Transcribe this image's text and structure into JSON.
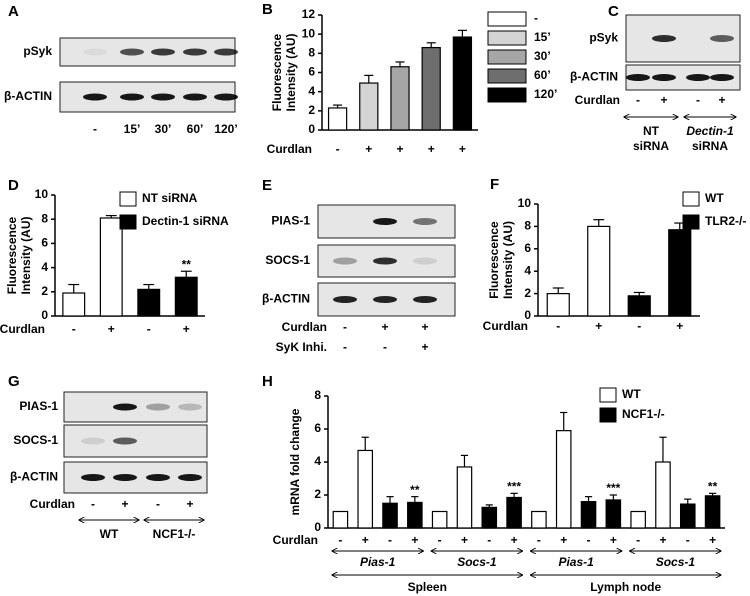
{
  "chart_data": [
    {
      "type": "bar",
      "panel": "B",
      "ylabel": [
        "Fluorescence",
        "Intensity (AU)"
      ],
      "xlabel": "Curdlan",
      "categories": [
        "-",
        "+",
        "+",
        "+",
        "+"
      ],
      "ylim": [
        0,
        12
      ],
      "yticks": [
        0,
        2,
        4,
        6,
        8,
        10,
        12
      ],
      "series": [
        {
          "name": "-",
          "color": "#ffffff",
          "values": [
            2.3,
            null,
            null,
            null,
            null
          ],
          "errors": [
            0.3,
            null,
            null,
            null,
            null
          ]
        },
        {
          "name": "15’",
          "color": "#d4d4d4",
          "values": [
            null,
            4.9,
            null,
            null,
            null
          ],
          "errors": [
            null,
            0.8,
            null,
            null,
            null
          ]
        },
        {
          "name": "30’",
          "color": "#a6a6a6",
          "values": [
            null,
            null,
            6.6,
            null,
            null
          ],
          "errors": [
            null,
            null,
            0.5,
            null,
            null
          ]
        },
        {
          "name": "60’",
          "color": "#6e6e6e",
          "values": [
            null,
            null,
            null,
            8.6,
            null
          ],
          "errors": [
            null,
            null,
            null,
            0.5,
            null
          ]
        },
        {
          "name": "120’",
          "color": "#000000",
          "values": [
            null,
            null,
            null,
            null,
            9.7
          ],
          "errors": [
            null,
            null,
            null,
            null,
            0.7
          ]
        }
      ]
    },
    {
      "type": "bar",
      "panel": "D",
      "ylabel": [
        "Fluorescence",
        "Intensity (AU)"
      ],
      "xlabel": "Curdlan",
      "categories": [
        "-",
        "+",
        "-",
        "+"
      ],
      "ylim": [
        0,
        10
      ],
      "yticks": [
        0,
        2,
        4,
        6,
        8,
        10
      ],
      "significance": [
        null,
        null,
        null,
        "**"
      ],
      "series": [
        {
          "name": "NT siRNA",
          "color": "#ffffff",
          "values": [
            1.9,
            8.1,
            null,
            null
          ],
          "errors": [
            0.7,
            0.2,
            null,
            null
          ]
        },
        {
          "name": "Dectin-1 siRNA",
          "color": "#000000",
          "values": [
            null,
            null,
            2.2,
            3.2
          ],
          "errors": [
            null,
            null,
            0.4,
            0.5
          ]
        }
      ]
    },
    {
      "type": "bar",
      "panel": "F",
      "ylabel": [
        "Fluorescence",
        "Intensity (AU)"
      ],
      "xlabel": "Curdlan",
      "categories": [
        "-",
        "+",
        "-",
        "+"
      ],
      "ylim": [
        0,
        10
      ],
      "yticks": [
        0,
        2,
        4,
        6,
        8,
        10
      ],
      "series": [
        {
          "name": "WT",
          "color": "#ffffff",
          "values": [
            2.0,
            8.0,
            null,
            null
          ],
          "errors": [
            0.5,
            0.6,
            null,
            null
          ]
        },
        {
          "name": "TLR2-/-",
          "color": "#000000",
          "values": [
            null,
            null,
            1.8,
            7.7
          ],
          "errors": [
            null,
            null,
            0.3,
            0.6
          ]
        }
      ]
    },
    {
      "type": "bar",
      "panel": "H",
      "ylabel": [
        "mRNA fold change"
      ],
      "xlabel": "Curdlan",
      "categories": [
        "-",
        "+",
        "-",
        "+",
        "-",
        "+",
        "-",
        "+",
        "-",
        "+",
        "-",
        "+",
        "-",
        "+",
        "-",
        "+"
      ],
      "ylim": [
        0,
        8
      ],
      "yticks": [
        0,
        2,
        4,
        6,
        8
      ],
      "significance": [
        null,
        null,
        null,
        "**",
        null,
        null,
        null,
        "***",
        null,
        null,
        null,
        "***",
        null,
        null,
        null,
        "**"
      ],
      "groups": [
        "Pias-1",
        "Socs-1",
        "Pias-1",
        "Socs-1"
      ],
      "tissues": [
        "Spleen",
        "Lymph node"
      ],
      "series": [
        {
          "name": "WT",
          "color": "#ffffff",
          "values": [
            1.0,
            4.7,
            null,
            null,
            1.0,
            3.7,
            null,
            null,
            1.0,
            5.9,
            null,
            null,
            1.0,
            4.0,
            null,
            null
          ],
          "errors": [
            null,
            0.8,
            null,
            null,
            null,
            0.7,
            null,
            null,
            null,
            1.1,
            null,
            null,
            null,
            1.5,
            null,
            null
          ]
        },
        {
          "name": "NCF1-/-",
          "color": "#000000",
          "values": [
            null,
            null,
            1.5,
            1.55,
            null,
            null,
            1.25,
            1.85,
            null,
            null,
            1.6,
            1.7,
            null,
            null,
            1.45,
            1.95
          ],
          "errors": [
            null,
            null,
            0.4,
            0.35,
            null,
            null,
            0.15,
            0.25,
            null,
            null,
            0.3,
            0.3,
            null,
            null,
            0.3,
            0.15
          ]
        }
      ]
    }
  ],
  "blots": [
    {
      "panel": "A",
      "rows": [
        "pSyk",
        "β-ACTIN"
      ],
      "lanes": [
        "-",
        "15’",
        "30’",
        "60’",
        "120’"
      ]
    },
    {
      "panel": "C",
      "rows": [
        "pSyk",
        "β-ACTIN"
      ],
      "conditions": [
        {
          "label": "Curdlan",
          "values": [
            "-",
            "+",
            "-",
            "+"
          ]
        }
      ],
      "groups": [
        [
          "NT",
          "siRNA"
        ],
        [
          "Dectin-1",
          "siRNA"
        ]
      ]
    },
    {
      "panel": "E",
      "rows": [
        "PIAS-1",
        "SOCS-1",
        "β-ACTIN"
      ],
      "conditions": [
        {
          "label": "Curdlan",
          "values": [
            "-",
            "+",
            "+"
          ]
        },
        {
          "label": "SyK Inhi.",
          "values": [
            "-",
            "-",
            "+"
          ]
        }
      ]
    },
    {
      "panel": "G",
      "rows": [
        "PIAS-1",
        "SOCS-1",
        "β-ACTIN"
      ],
      "conditions": [
        {
          "label": "Curdlan",
          "values": [
            "-",
            "+",
            "-",
            "+"
          ]
        }
      ],
      "groups": [
        [
          "WT"
        ],
        [
          "NCF1-/-"
        ]
      ]
    }
  ]
}
